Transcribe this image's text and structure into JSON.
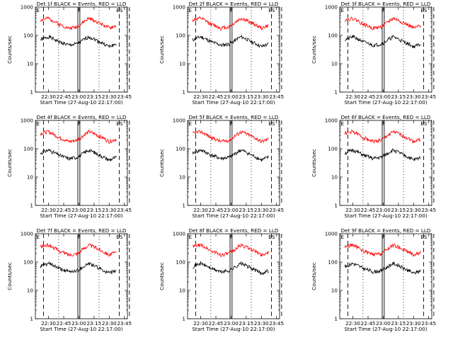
{
  "chart_data": {
    "type": "line",
    "panel_titles": [
      "Det 1f BLACK = Events, RED = LLD",
      "Det 2f BLACK = Events, RED = LLD",
      "Det 3f BLACK = Events, RED = LLD",
      "Det 4f BLACK = Events, RED = LLD",
      "Det 5f BLACK = Events, RED = LLD",
      "Det 6f BLACK = Events, RED = LLD",
      "Det 7f BLACK = Events, RED = LLD",
      "Det 8f BLACK = Events, RED = LLD",
      "Det 9f BLACK = Events, RED = LLD"
    ],
    "ylabel": "Counts/sec",
    "xlabel": "Start Time (27-Aug-10 22:17:00)",
    "yscale": "log",
    "ylim": [
      1,
      1000
    ],
    "y_tick_labels": [
      "1",
      "10",
      "100",
      "1000"
    ],
    "x_range_minutes": [
      22.28,
      23.8
    ],
    "x_tick_labels": [
      "22:30",
      "22:45",
      "23:00",
      "23:15",
      "23:30",
      "23:45"
    ],
    "markers": {
      "top_labels": [
        "E",
        "F",
        "ES"
      ],
      "solid_lines": [
        "22:59",
        "23:01"
      ],
      "dashed_lines": [
        "22:25",
        "23:40",
        "23:50"
      ],
      "dotted_lines": [
        "22:40",
        "23:20"
      ]
    },
    "series": [
      {
        "name": "BLACK = Events",
        "color": "#000000",
        "profile_x": [
          "22:22",
          "22:30",
          "22:40",
          "22:50",
          "22:58",
          "23:02",
          "23:10",
          "23:20",
          "23:30",
          "23:37"
        ],
        "approx_values": [
          70,
          90,
          60,
          45,
          50,
          60,
          90,
          60,
          40,
          50
        ]
      },
      {
        "name": "RED = LLD",
        "color": "#ff0000",
        "profile_x": [
          "22:22",
          "22:30",
          "22:40",
          "22:50",
          "22:58",
          "23:02",
          "23:10",
          "23:20",
          "23:30",
          "23:37"
        ],
        "approx_values": [
          350,
          400,
          250,
          180,
          200,
          250,
          400,
          280,
          180,
          220
        ]
      }
    ]
  }
}
